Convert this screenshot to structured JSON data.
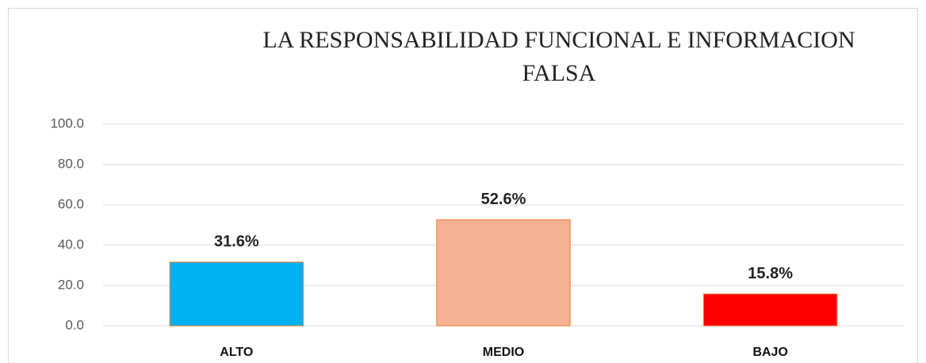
{
  "chart_data": {
    "type": "bar",
    "title": "LA RESPONSABILIDAD FUNCIONAL E INFORMACION FALSA",
    "categories": [
      "ALTO",
      "MEDIO",
      "BAJO"
    ],
    "values": [
      31.6,
      52.6,
      15.8
    ],
    "value_labels": [
      "31.6%",
      "52.6%",
      "15.8%"
    ],
    "colors": [
      "#00b0f0",
      "#f4b194",
      "#ff0000"
    ],
    "ylim": [
      0,
      100
    ],
    "yticks": [
      {
        "value": 0,
        "label": "0.0"
      },
      {
        "value": 20,
        "label": "20.0"
      },
      {
        "value": 40,
        "label": "40.0"
      },
      {
        "value": 60,
        "label": "60.0"
      },
      {
        "value": 80,
        "label": "80.0"
      },
      {
        "value": 100,
        "label": "100.0"
      }
    ],
    "grid": true
  }
}
